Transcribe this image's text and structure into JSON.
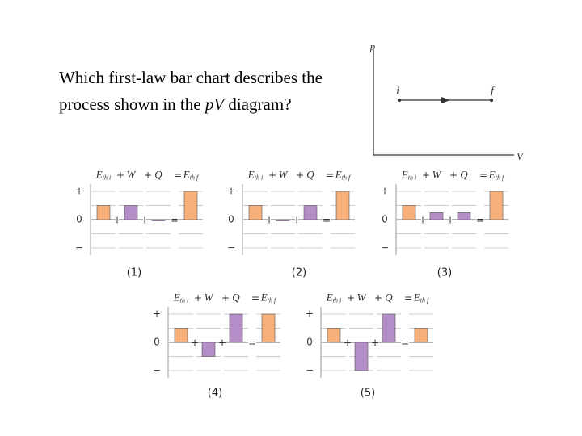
{
  "question": {
    "line1": "Which first-law bar chart describes the",
    "line2_start": "process shown in the ",
    "line2_italic": "pV",
    "line2_end": " diagram?"
  },
  "pv_diagram": {
    "y_axis_label": "p",
    "x_axis_label": "V",
    "start_label": "i",
    "end_label": "f"
  },
  "chart_data": [
    {
      "type": "bar",
      "label": "(1)",
      "categories": [
        "E",
        "W",
        "Q",
        "E"
      ],
      "category_subscripts": [
        "th i",
        null,
        null,
        "th f"
      ],
      "operators": [
        "+",
        "+",
        "="
      ],
      "values": [
        1,
        1,
        0,
        2
      ],
      "colors": [
        "#f7b07a",
        "#b38cc8",
        "#b38cc8",
        "#f7b07a"
      ],
      "ylim": [
        -2.5,
        2.5
      ],
      "yticks": [
        {
          "value": 2,
          "label": "+"
        },
        0,
        {
          "value": -2,
          "label": "−"
        }
      ],
      "gridlines": [
        2,
        1,
        -1,
        -2
      ]
    },
    {
      "type": "bar",
      "label": "(2)",
      "categories": [
        "E",
        "W",
        "Q",
        "E"
      ],
      "category_subscripts": [
        "th i",
        null,
        null,
        "th f"
      ],
      "operators": [
        "+",
        "+",
        "="
      ],
      "values": [
        1,
        0,
        1,
        2
      ],
      "colors": [
        "#f7b07a",
        "#b38cc8",
        "#b38cc8",
        "#f7b07a"
      ],
      "ylim": [
        -2.5,
        2.5
      ],
      "yticks": [
        {
          "value": 2,
          "label": "+"
        },
        0,
        {
          "value": -2,
          "label": "−"
        }
      ],
      "gridlines": [
        2,
        1,
        -1,
        -2
      ]
    },
    {
      "type": "bar",
      "label": "(3)",
      "categories": [
        "E",
        "W",
        "Q",
        "E"
      ],
      "category_subscripts": [
        "th i",
        null,
        null,
        "th f"
      ],
      "operators": [
        "+",
        "+",
        "="
      ],
      "values": [
        1,
        0.5,
        0.5,
        2
      ],
      "colors": [
        "#f7b07a",
        "#b38cc8",
        "#b38cc8",
        "#f7b07a"
      ],
      "ylim": [
        -2.5,
        2.5
      ],
      "yticks": [
        {
          "value": 2,
          "label": "+"
        },
        0,
        {
          "value": -2,
          "label": "−"
        }
      ],
      "gridlines": [
        2,
        1,
        -1,
        -2
      ]
    },
    {
      "type": "bar",
      "label": "(4)",
      "categories": [
        "E",
        "W",
        "Q",
        "E"
      ],
      "category_subscripts": [
        "th i",
        null,
        null,
        "th f"
      ],
      "operators": [
        "+",
        "+",
        "="
      ],
      "values": [
        1,
        -1,
        2,
        2
      ],
      "colors": [
        "#f7b07a",
        "#b38cc8",
        "#b38cc8",
        "#f7b07a"
      ],
      "ylim": [
        -2.5,
        2.5
      ],
      "yticks": [
        {
          "value": 2,
          "label": "+"
        },
        0,
        {
          "value": -2,
          "label": "−"
        }
      ],
      "gridlines": [
        2,
        1,
        -1,
        -2
      ]
    },
    {
      "type": "bar",
      "label": "(5)",
      "categories": [
        "E",
        "W",
        "Q",
        "E"
      ],
      "category_subscripts": [
        "th i",
        null,
        null,
        "th f"
      ],
      "operators": [
        "+",
        "+",
        "="
      ],
      "values": [
        1,
        -2,
        2,
        1
      ],
      "colors": [
        "#f7b07a",
        "#b38cc8",
        "#b38cc8",
        "#f7b07a"
      ],
      "ylim": [
        -2.5,
        2.5
      ],
      "yticks": [
        {
          "value": 2,
          "label": "+"
        },
        0,
        {
          "value": -2,
          "label": "−"
        }
      ],
      "gridlines": [
        2,
        1,
        -1,
        -2
      ]
    }
  ]
}
